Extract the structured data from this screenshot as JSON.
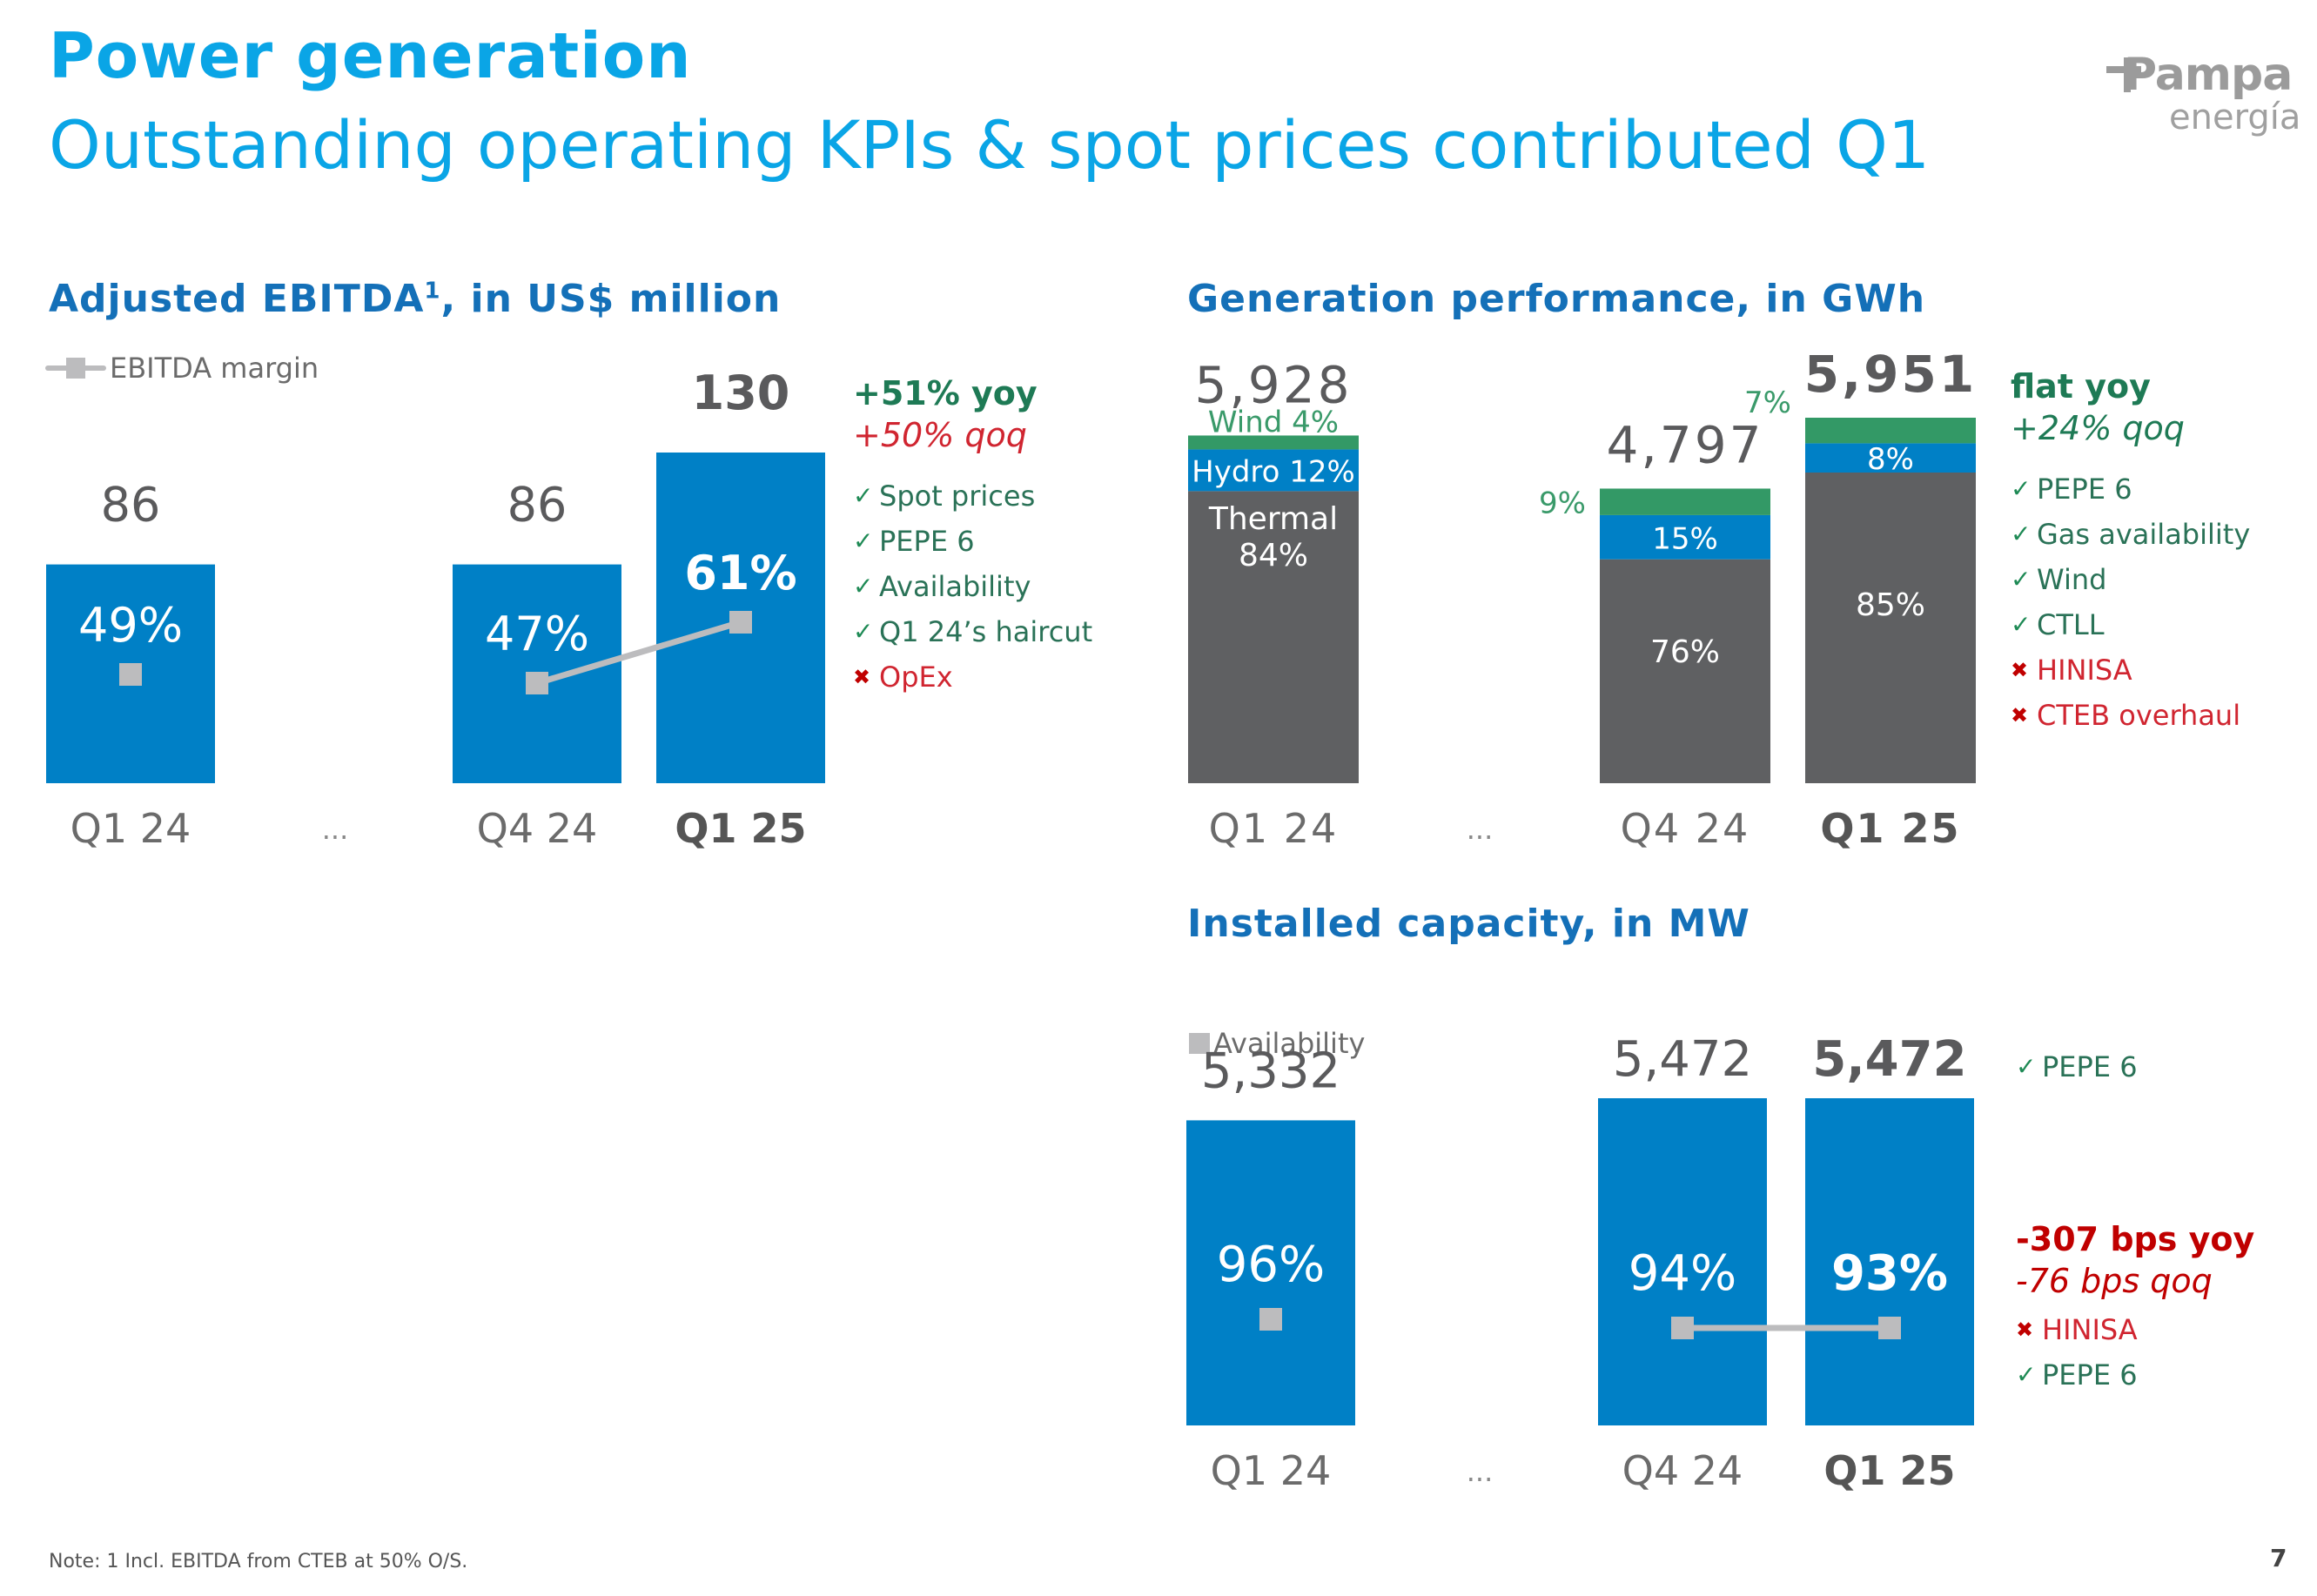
{
  "header": {
    "title": "Power generation",
    "subtitle": "Outstanding operating KPIs & spot prices contributed Q1",
    "logo_top": "Pampa",
    "logo_bottom": "energía"
  },
  "colors": {
    "title": "#0aa5e6",
    "section": "#1470b8",
    "bar_blue": "#0080c6",
    "thermal": "#5f6062",
    "hydro": "#0080c6",
    "wind": "#339966",
    "marker": "#bcbcbe",
    "text_dark": "#5a5a5c",
    "positive": "#2a7257",
    "negative": "#c00000"
  },
  "ebitda": {
    "title": "Adjusted EBITDA",
    "title_sup": "1",
    "title_suffix": ", in US$ million",
    "legend": "EBITDA margin",
    "highlights": {
      "yoy": "+51% yoy",
      "qoq": "+50% qoq",
      "items": [
        {
          "type": "positive",
          "icon": "check-icon",
          "label": "Spot prices"
        },
        {
          "type": "positive",
          "icon": "check-icon",
          "label": "PEPE 6"
        },
        {
          "type": "positive",
          "icon": "check-icon",
          "label": "Availability"
        },
        {
          "type": "positive",
          "icon": "check-icon",
          "label": "Q1 24’s haircut"
        },
        {
          "type": "negative",
          "icon": "cross-icon",
          "label": "OpEx"
        }
      ]
    }
  },
  "generation": {
    "title": "Generation performance, in GWh",
    "highlights": {
      "yoy": "flat yoy",
      "qoq": "+24% qoq",
      "items": [
        {
          "type": "positive",
          "icon": "check-icon",
          "label": "PEPE 6"
        },
        {
          "type": "positive",
          "icon": "check-icon",
          "label": "Gas availability"
        },
        {
          "type": "positive",
          "icon": "check-icon",
          "label": "Wind"
        },
        {
          "type": "positive",
          "icon": "check-icon",
          "label": "CTLL"
        },
        {
          "type": "negative",
          "icon": "cross-icon",
          "label": "HINISA"
        },
        {
          "type": "negative",
          "icon": "cross-icon",
          "label": "CTEB overhaul"
        }
      ]
    }
  },
  "capacity": {
    "title": "Installed capacity, in MW",
    "legend": "Availability",
    "highlights_top": [
      {
        "type": "positive",
        "icon": "check-icon",
        "label": "PEPE 6"
      }
    ],
    "highlights": {
      "yoy": "-307 bps yoy",
      "qoq": "-76 bps qoq",
      "items": [
        {
          "type": "negative",
          "icon": "cross-icon",
          "label": "HINISA"
        },
        {
          "type": "positive",
          "icon": "check-icon",
          "label": "PEPE 6"
        }
      ]
    }
  },
  "ellipsis": "...",
  "footer": {
    "note_label": "Note:",
    "note_text": " 1 Incl. EBITDA from CTEB at 50% O/S.",
    "page": "7"
  },
  "chart_data": [
    {
      "type": "bar",
      "title": "Adjusted EBITDA, in US$ million",
      "categories": [
        "Q1 24",
        "Q4 24",
        "Q1 25"
      ],
      "series": [
        {
          "name": "Adjusted EBITDA",
          "values": [
            86,
            86,
            130
          ],
          "value_labels": [
            "86",
            "86",
            "130"
          ]
        },
        {
          "name": "EBITDA margin",
          "values": [
            0.49,
            0.47,
            0.61
          ],
          "value_labels": [
            "49%",
            "47%",
            "61%"
          ],
          "render": "line-markers",
          "connected": [
            false,
            true,
            true
          ]
        }
      ],
      "highlight_category": "Q1 25",
      "gap_after_first": true,
      "ylim": [
        0,
        150
      ],
      "legend": "top-left",
      "grid": false
    },
    {
      "type": "bar",
      "stacked": true,
      "title": "Generation performance, in GWh",
      "categories": [
        "Q1 24",
        "Q4 24",
        "Q1 25"
      ],
      "totals": [
        5928,
        4797,
        5951
      ],
      "total_labels": [
        "5,928",
        "4,797",
        "5,951"
      ],
      "series": [
        {
          "name": "Thermal",
          "values": [
            0.84,
            0.76,
            0.85
          ],
          "value_labels": [
            "Thermal\n84%",
            "76%",
            "85%"
          ]
        },
        {
          "name": "Hydro",
          "values": [
            0.12,
            0.15,
            0.08
          ],
          "value_labels": [
            "Hydro 12%",
            "15%",
            "8%"
          ]
        },
        {
          "name": "Wind",
          "values": [
            0.04,
            0.09,
            0.07
          ],
          "value_labels": [
            "Wind 4%",
            "9%",
            "7%"
          ]
        }
      ],
      "highlight_category": "Q1 25",
      "ylim": [
        0,
        6500
      ],
      "grid": false
    },
    {
      "type": "bar",
      "title": "Installed capacity, in MW",
      "categories": [
        "Q1 24",
        "Q4 24",
        "Q1 25"
      ],
      "series": [
        {
          "name": "Installed capacity",
          "values": [
            5332,
            5472,
            5472
          ],
          "value_labels": [
            "5,332",
            "5,472",
            "5,472"
          ]
        },
        {
          "name": "Availability",
          "values": [
            0.96,
            0.94,
            0.93
          ],
          "value_labels": [
            "96%",
            "94%",
            "93%"
          ],
          "render": "line-markers",
          "connected": [
            false,
            true,
            true
          ]
        }
      ],
      "highlight_category": "Q1 25",
      "ylim": [
        3400,
        5700
      ],
      "legend": "top-left",
      "grid": false
    }
  ]
}
